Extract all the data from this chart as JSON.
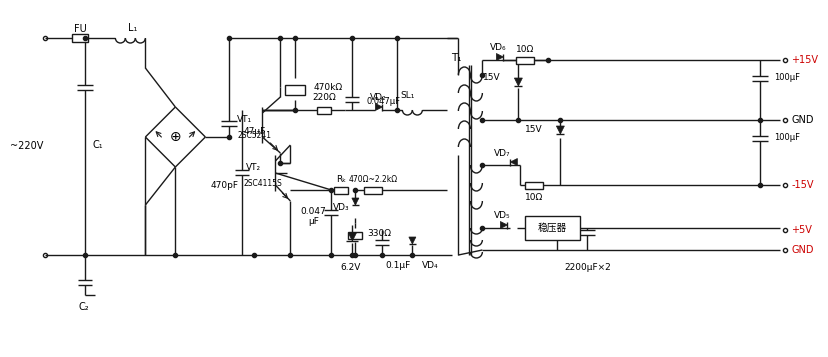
{
  "bg_color": "#ffffff",
  "line_color": "#1a1a1a",
  "text_color": "#000000",
  "red_color": "#cc0000",
  "fig_width": 7.84,
  "fig_height": 3.37,
  "labels": {
    "FU": "FU",
    "L1": "L₁",
    "C1": "C₁",
    "220V": "~220V",
    "47uF": "47μF",
    "470pF": "470pF",
    "470kOhm": "470kΩ",
    "VT1": "VT₁",
    "VT2": "VT₂",
    "2SC5241": "2SC5241",
    "2SC4115S": "2SC4115S",
    "VD2": "VD₂",
    "220Ohm": "220Ω",
    "0047uF": "0.047μF",
    "SL1": "SL₁",
    "Rk": "Rₖ",
    "470Ohm_2k2": "470Ω~2.2kΩ",
    "0047uF2": "0.047",
    "0047uF2b": "μF",
    "VD3": "VD₃",
    "330Ohm": "330Ω",
    "62V": "6.2V",
    "01uF": "0.1μF",
    "VD4": "VD₄",
    "C2": "C₂",
    "T1": "T₁",
    "VD6": "VD₆",
    "10Ohm": "10Ω",
    "plus15V": "+15V",
    "15V_top": "15V",
    "100uF_top": "100μF",
    "GND": "GND",
    "15V_mid": "15V",
    "VD7": "VD₇",
    "100uF_mid": "100μF",
    "10Ohm2": "10Ω",
    "minus15V": "-15V",
    "VD5": "VD₅",
    "wenYaQi": "稳压器",
    "plus5V": "+5V",
    "2200uFx2": "2200μF×2",
    "GND2": "GND"
  }
}
